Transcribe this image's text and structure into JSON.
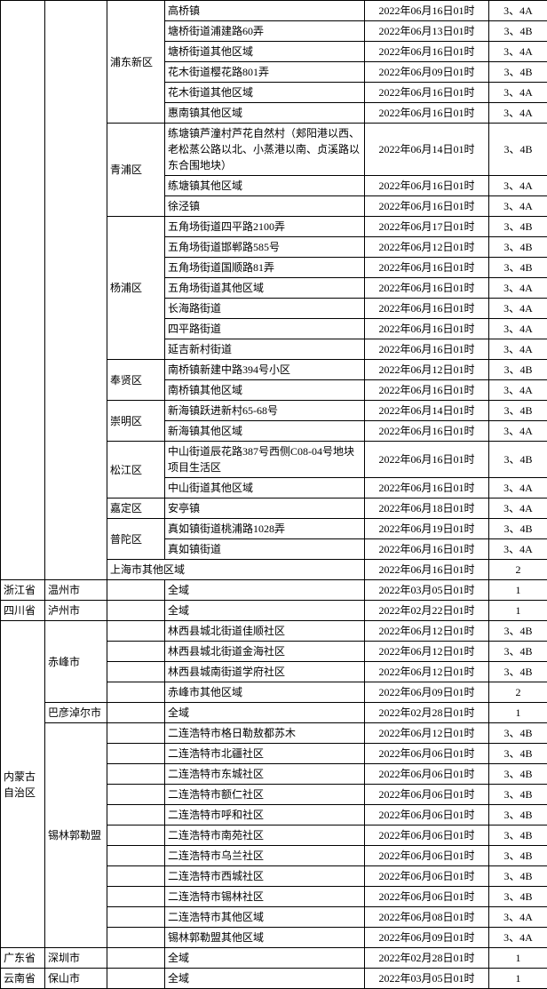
{
  "rows": [
    {
      "prov": "",
      "city": "",
      "dist": "浦东新区",
      "area": "高桥镇",
      "time": "2022年06月16日01时",
      "level": "3、4A",
      "rs_prov": 26,
      "rs_city": 26,
      "rs_dist": 6,
      "tall": false
    },
    {
      "area": "塘桥街道浦建路60弄",
      "time": "2022年06月13日01时",
      "level": "3、4B"
    },
    {
      "area": "塘桥街道其他区域",
      "time": "2022年06月16日01时",
      "level": "3、4A"
    },
    {
      "area": "花木街道樱花路801弄",
      "time": "2022年06月09日01时",
      "level": "3、4B"
    },
    {
      "area": "花木街道其他区域",
      "time": "2022年06月16日01时",
      "level": "3、4A"
    },
    {
      "area": "惠南镇其他区域",
      "time": "2022年06月16日01时",
      "level": "3、4A"
    },
    {
      "dist": "青浦区",
      "area": "练塘镇芦潼村芦花自然村（郏阳港以西、老松蒸公路以北、小蒸港以南、贞溪路以东合围地块）",
      "time": "2022年06月14日01时",
      "level": "3、4B",
      "rs_dist": 3,
      "tall": true
    },
    {
      "area": "练塘镇其他区域",
      "time": "2022年06月16日01时",
      "level": "3、4A"
    },
    {
      "area": "徐泾镇",
      "time": "2022年06月16日01时",
      "level": "3、4A"
    },
    {
      "dist": "杨浦区",
      "area": "五角场街道四平路2100弄",
      "time": "2022年06月17日01时",
      "level": "3、4B",
      "rs_dist": 7
    },
    {
      "area": "五角场街道邯郸路585号",
      "time": "2022年06月12日01时",
      "level": "3、4B"
    },
    {
      "area": "五角场街道国顺路81弄",
      "time": "2022年06月16日01时",
      "level": "3、4B"
    },
    {
      "area": "五角场街道其他区域",
      "time": "2022年06月16日01时",
      "level": "3、4A"
    },
    {
      "area": "长海路街道",
      "time": "2022年06月16日01时",
      "level": "3、4A"
    },
    {
      "area": "四平路街道",
      "time": "2022年06月16日01时",
      "level": "3、4A"
    },
    {
      "area": "延吉新村街道",
      "time": "2022年06月16日01时",
      "level": "3、4A"
    },
    {
      "dist": "奉贤区",
      "area": "南桥镇新建中路394号小区",
      "time": "2022年06月12日01时",
      "level": "3、4B",
      "rs_dist": 2
    },
    {
      "area": "南桥镇其他区域",
      "time": "2022年06月16日01时",
      "level": "3、4A"
    },
    {
      "dist": "崇明区",
      "area": "新海镇跃进新村65-68号",
      "time": "2022年06月14日01时",
      "level": "3、4B",
      "rs_dist": 2
    },
    {
      "area": "新海镇其他区域",
      "time": "2022年06月16日01时",
      "level": "3、4A"
    },
    {
      "dist": "松江区",
      "area": "中山街道辰花路387号西侧C08-04号地块项目生活区",
      "time": "2022年06月16日01时",
      "level": "3、4B",
      "rs_dist": 2,
      "med": true
    },
    {
      "area": "中山街道其他区域",
      "time": "2022年06月16日01时",
      "level": "3、4A"
    },
    {
      "dist": "嘉定区",
      "area": "安亭镇",
      "time": "2022年06月18日01时",
      "level": "3、4A",
      "rs_dist": 1
    },
    {
      "dist": "普陀区",
      "area": "真如镇街道桃浦路1028弄",
      "time": "2022年06月19日01时",
      "level": "3、4B",
      "rs_dist": 2
    },
    {
      "area": "真如镇街道",
      "time": "2022年06月16日01时",
      "level": "3、4A"
    },
    {
      "dist": "上海市其他区域",
      "area": "",
      "time": "2022年06月16日01时",
      "level": "2",
      "cs_dist": 2
    },
    {
      "prov": "浙江省",
      "city": "温州市",
      "dist": "",
      "area": "全域",
      "time": "2022年03月05日01时",
      "level": "1",
      "rs_prov": 1,
      "rs_city": 1,
      "cs_dist": 1
    },
    {
      "prov": "四川省",
      "city": "泸州市",
      "dist": "",
      "area": "全域",
      "time": "2022年02月22日01时",
      "level": "1",
      "rs_prov": 1,
      "rs_city": 1,
      "cs_dist": 1
    },
    {
      "prov": "内蒙古自治区",
      "city": "赤峰市",
      "dist": "",
      "area": "林西县城北街道佳顺社区",
      "time": "2022年06月12日01时",
      "level": "3、4B",
      "rs_prov": 16,
      "rs_city": 4,
      "cs_dist": 1
    },
    {
      "dist": "",
      "area": "林西县城北街道金海社区",
      "time": "2022年06月12日01时",
      "level": "3、4B",
      "cs_dist": 1
    },
    {
      "dist": "",
      "area": "林西县城南街道学府社区",
      "time": "2022年06月12日01时",
      "level": "3、4B",
      "cs_dist": 1
    },
    {
      "dist": "",
      "area": "赤峰市其他区域",
      "time": "2022年06月09日01时",
      "level": "2",
      "cs_dist": 1
    },
    {
      "city": "巴彦淖尔市",
      "dist": "",
      "area": "全域",
      "time": "2022年02月28日01时",
      "level": "1",
      "rs_city": 1,
      "cs_dist": 1
    },
    {
      "city": "锡林郭勒盟",
      "dist": "",
      "area": "二连浩特市格日勒敖都苏木",
      "time": "2022年06月12日01时",
      "level": "3、4B",
      "rs_city": 11,
      "cs_dist": 1
    },
    {
      "dist": "",
      "area": "二连浩特市北疆社区",
      "time": "2022年06月06日01时",
      "level": "3、4B",
      "cs_dist": 1
    },
    {
      "dist": "",
      "area": "二连浩特市东城社区",
      "time": "2022年06月06日01时",
      "level": "3、4B",
      "cs_dist": 1
    },
    {
      "dist": "",
      "area": "二连浩特市额仁社区",
      "time": "2022年06月06日01时",
      "level": "3、4B",
      "cs_dist": 1
    },
    {
      "dist": "",
      "area": "二连浩特市呼和社区",
      "time": "2022年06月06日01时",
      "level": "3、4B",
      "cs_dist": 1
    },
    {
      "dist": "",
      "area": "二连浩特市南苑社区",
      "time": "2022年06月06日01时",
      "level": "3、4B",
      "cs_dist": 1
    },
    {
      "dist": "",
      "area": "二连浩特市乌兰社区",
      "time": "2022年06月06日01时",
      "level": "3、4B",
      "cs_dist": 1
    },
    {
      "dist": "",
      "area": "二连浩特市西城社区",
      "time": "2022年06月06日01时",
      "level": "3、4B",
      "cs_dist": 1
    },
    {
      "dist": "",
      "area": "二连浩特市锡林社区",
      "time": "2022年06月06日01时",
      "level": "3、4B",
      "cs_dist": 1
    },
    {
      "dist": "",
      "area": "二连浩特市其他区域",
      "time": "2022年06月08日01时",
      "level": "3、4A",
      "cs_dist": 1
    },
    {
      "dist": "",
      "area": "锡林郭勒盟其他区域",
      "time": "2022年06月09日01时",
      "level": "3、4A",
      "cs_dist": 1
    },
    {
      "prov": "广东省",
      "city": "深圳市",
      "dist": "",
      "area": "全域",
      "time": "2022年02月28日01时",
      "level": "1",
      "rs_prov": 1,
      "rs_city": 1,
      "cs_dist": 1
    },
    {
      "prov": "云南省",
      "city": "保山市",
      "dist": "",
      "area": "全域",
      "time": "2022年03月05日01时",
      "level": "1",
      "rs_prov": 1,
      "rs_city": 1,
      "cs_dist": 1
    }
  ]
}
